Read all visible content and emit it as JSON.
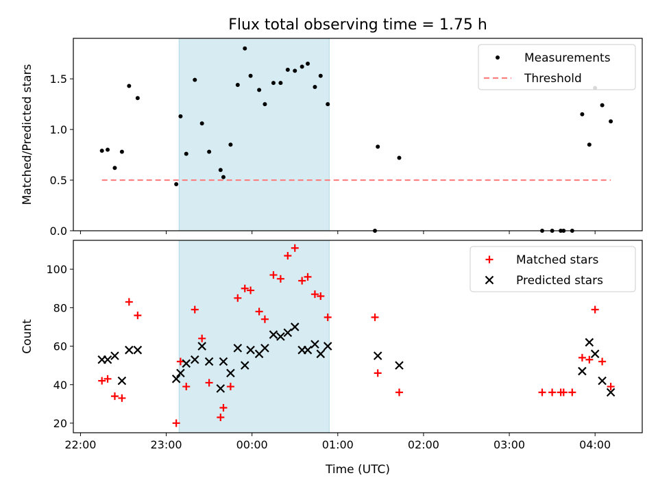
{
  "chart_data": {
    "type": "scatter",
    "title": "Flux total observing time = 1.75 h",
    "xlabel": "Time (UTC)",
    "x_unit": "minutes after 22:00 UTC",
    "x_range": [
      -5,
      393
    ],
    "xticks": [
      {
        "value": 0,
        "label": "22:00"
      },
      {
        "value": 60,
        "label": "23:00"
      },
      {
        "value": 120,
        "label": "00:00"
      },
      {
        "value": 180,
        "label": "01:00"
      },
      {
        "value": 240,
        "label": "02:00"
      },
      {
        "value": 300,
        "label": "03:00"
      },
      {
        "value": 360,
        "label": "04:00"
      }
    ],
    "observing_window": {
      "start": 69,
      "end": 174,
      "color": "#add8e6"
    },
    "panels": [
      {
        "ylabel": "Matched/Predicted stars",
        "ylim": [
          0,
          1.9
        ],
        "yticks": [
          {
            "value": 0,
            "label": "0.0"
          },
          {
            "value": 0.5,
            "label": "0.5"
          },
          {
            "value": 1.0,
            "label": "1.0"
          },
          {
            "value": 1.5,
            "label": "1.5"
          }
        ],
        "legend": {
          "placement": "top-right",
          "entries": [
            {
              "label": "Measurements",
              "marker": "dot",
              "color": "#000000"
            },
            {
              "label": "Threshold",
              "marker": "dashed-line",
              "color": "#ff7f7f"
            }
          ]
        },
        "threshold": {
          "name": "Threshold",
          "value": 0.5,
          "x_start": 15,
          "x_end": 371,
          "color": "#ff7f7f"
        },
        "series": [
          {
            "name": "Measurements",
            "marker": "dot",
            "color": "#000000",
            "points": [
              [
                15,
                0.79
              ],
              [
                19,
                0.8
              ],
              [
                24,
                0.62
              ],
              [
                29,
                0.78
              ],
              [
                34,
                1.43
              ],
              [
                40,
                1.31
              ],
              [
                67,
                0.46
              ],
              [
                70,
                1.13
              ],
              [
                74,
                0.76
              ],
              [
                80,
                1.49
              ],
              [
                85,
                1.06
              ],
              [
                90,
                0.78
              ],
              [
                98,
                0.6
              ],
              [
                100,
                0.53
              ],
              [
                105,
                0.85
              ],
              [
                110,
                1.44
              ],
              [
                115,
                1.8
              ],
              [
                119,
                1.53
              ],
              [
                125,
                1.39
              ],
              [
                129,
                1.25
              ],
              [
                135,
                1.46
              ],
              [
                140,
                1.46
              ],
              [
                145,
                1.59
              ],
              [
                150,
                1.58
              ],
              [
                155,
                1.62
              ],
              [
                159,
                1.65
              ],
              [
                164,
                1.42
              ],
              [
                168,
                1.53
              ],
              [
                173,
                1.25
              ],
              [
                206,
                0.0
              ],
              [
                208,
                0.83
              ],
              [
                223,
                0.72
              ],
              [
                323,
                0.0
              ],
              [
                330,
                0.0
              ],
              [
                336,
                0.0
              ],
              [
                338,
                0.0
              ],
              [
                344,
                0.0
              ],
              [
                351,
                1.15
              ],
              [
                356,
                0.85
              ],
              [
                360,
                1.41
              ],
              [
                365,
                1.24
              ],
              [
                371,
                1.08
              ]
            ]
          }
        ]
      },
      {
        "ylabel": "Count",
        "ylim": [
          15,
          115
        ],
        "yticks": [
          {
            "value": 20,
            "label": "20"
          },
          {
            "value": 40,
            "label": "40"
          },
          {
            "value": 60,
            "label": "60"
          },
          {
            "value": 80,
            "label": "80"
          },
          {
            "value": 100,
            "label": "100"
          }
        ],
        "legend": {
          "placement": "top-right",
          "entries": [
            {
              "label": "Matched stars",
              "marker": "plus",
              "color": "#ff0000"
            },
            {
              "label": "Predicted stars",
              "marker": "x",
              "color": "#000000"
            }
          ]
        },
        "series": [
          {
            "name": "Matched stars",
            "marker": "plus",
            "color": "#ff0000",
            "points": [
              [
                15,
                42
              ],
              [
                19,
                43
              ],
              [
                24,
                34
              ],
              [
                29,
                33
              ],
              [
                34,
                83
              ],
              [
                40,
                76
              ],
              [
                67,
                20
              ],
              [
                70,
                52
              ],
              [
                74,
                39
              ],
              [
                80,
                79
              ],
              [
                85,
                64
              ],
              [
                90,
                41
              ],
              [
                98,
                23
              ],
              [
                100,
                28
              ],
              [
                105,
                39
              ],
              [
                110,
                85
              ],
              [
                115,
                90
              ],
              [
                119,
                89
              ],
              [
                125,
                78
              ],
              [
                129,
                74
              ],
              [
                135,
                97
              ],
              [
                140,
                95
              ],
              [
                145,
                107
              ],
              [
                150,
                111
              ],
              [
                155,
                94
              ],
              [
                159,
                96
              ],
              [
                164,
                87
              ],
              [
                168,
                86
              ],
              [
                173,
                75
              ],
              [
                206,
                75
              ],
              [
                208,
                46
              ],
              [
                223,
                36
              ],
              [
                323,
                36
              ],
              [
                330,
                36
              ],
              [
                336,
                36
              ],
              [
                338,
                36
              ],
              [
                344,
                36
              ],
              [
                351,
                54
              ],
              [
                356,
                53
              ],
              [
                360,
                79
              ],
              [
                365,
                52
              ],
              [
                371,
                39
              ]
            ]
          },
          {
            "name": "Predicted stars",
            "marker": "x",
            "color": "#000000",
            "points": [
              [
                15,
                53
              ],
              [
                19,
                53
              ],
              [
                24,
                55
              ],
              [
                29,
                42
              ],
              [
                34,
                58
              ],
              [
                40,
                58
              ],
              [
                67,
                43
              ],
              [
                70,
                46
              ],
              [
                74,
                51
              ],
              [
                80,
                53
              ],
              [
                85,
                60
              ],
              [
                90,
                52
              ],
              [
                98,
                38
              ],
              [
                100,
                52
              ],
              [
                105,
                46
              ],
              [
                110,
                59
              ],
              [
                115,
                50
              ],
              [
                119,
                58
              ],
              [
                125,
                56
              ],
              [
                129,
                59
              ],
              [
                135,
                66
              ],
              [
                140,
                65
              ],
              [
                145,
                67
              ],
              [
                150,
                70
              ],
              [
                155,
                58
              ],
              [
                159,
                58
              ],
              [
                164,
                61
              ],
              [
                168,
                56
              ],
              [
                173,
                60
              ],
              [
                208,
                55
              ],
              [
                223,
                50
              ],
              [
                351,
                47
              ],
              [
                356,
                62
              ],
              [
                360,
                56
              ],
              [
                365,
                42
              ],
              [
                371,
                36
              ]
            ]
          }
        ]
      }
    ]
  }
}
